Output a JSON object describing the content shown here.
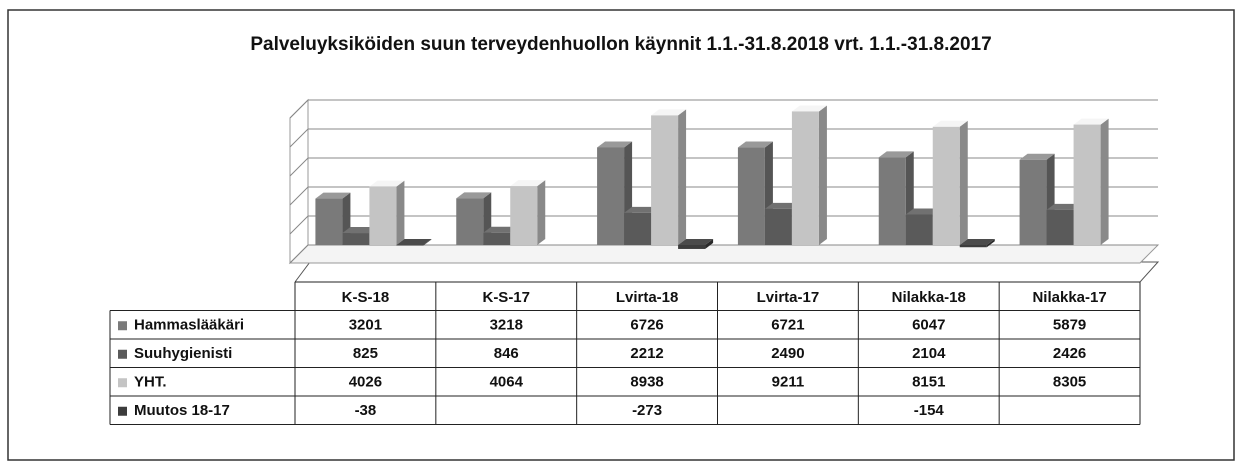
{
  "chart_data": {
    "type": "bar",
    "title": "Palveluyksiköiden suun terveydenhuollon käynnit 1.1.-31.8.2018 vrt. 1.1.-31.8.2017",
    "categories": [
      "K-S-18",
      "K-S-17",
      "Lvirta-18",
      "Lvirta-17",
      "Nilakka-18",
      "Nilakka-17"
    ],
    "series": [
      {
        "name": "Hammaslääkäri",
        "color": "#7a7a7a",
        "values": [
          3201,
          3218,
          6726,
          6721,
          6047,
          5879
        ]
      },
      {
        "name": "Suuhygienisti",
        "color": "#5a5a5a",
        "values": [
          825,
          846,
          2212,
          2490,
          2104,
          2426
        ]
      },
      {
        "name": "YHT.",
        "color": "#c4c4c4",
        "values": [
          4026,
          4064,
          8938,
          9211,
          8151,
          8305
        ]
      },
      {
        "name": "Muutos 18-17",
        "color": "#3c3c3c",
        "values": [
          -38,
          null,
          -273,
          null,
          -154,
          null
        ]
      }
    ],
    "ylim": [
      0,
      10000
    ],
    "yticks": [
      0,
      2000,
      4000,
      6000,
      8000,
      10000
    ],
    "grid": true
  }
}
